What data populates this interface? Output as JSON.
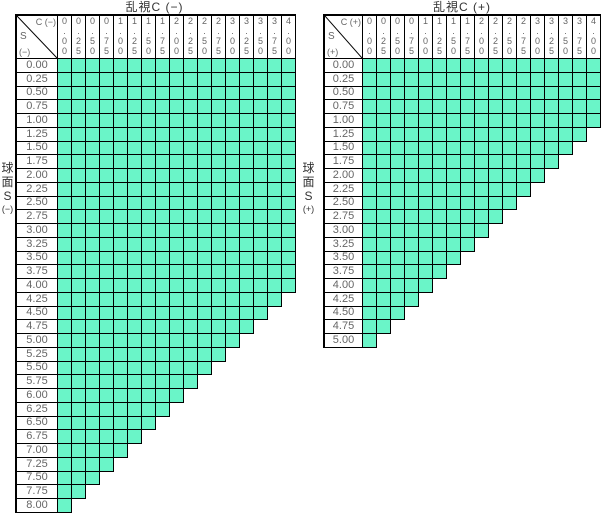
{
  "colors": {
    "cell_fill": "#6AF5C8",
    "grid_border": "#000000",
    "number_text": "#666666",
    "title_text": "#333333",
    "background": "#FFFFFF"
  },
  "chart_data": [
    {
      "type": "table",
      "title": "乱視C (−)",
      "corner": {
        "col_axis": "C (−)",
        "row_axis": "S",
        "row_axis_sign": "(−)"
      },
      "side_label": [
        "球",
        "面",
        "S",
        "(−)"
      ],
      "columns": [
        "0.00",
        "0.25",
        "0.50",
        "0.75",
        "1.00",
        "1.25",
        "1.50",
        "1.75",
        "2.00",
        "2.25",
        "2.50",
        "2.75",
        "3.00",
        "3.25",
        "3.50",
        "3.75",
        "4.00"
      ],
      "rows": [
        "0.00",
        "0.25",
        "0.50",
        "0.75",
        "1.00",
        "1.25",
        "1.50",
        "1.75",
        "2.00",
        "2.25",
        "2.50",
        "2.75",
        "3.00",
        "3.25",
        "3.50",
        "3.75",
        "4.00",
        "4.25",
        "4.50",
        "4.75",
        "5.00",
        "5.25",
        "5.50",
        "5.75",
        "6.00",
        "6.25",
        "6.50",
        "6.75",
        "7.00",
        "7.25",
        "7.50",
        "7.75",
        "8.00"
      ],
      "cells_filled_per_row": [
        17,
        17,
        17,
        17,
        17,
        17,
        17,
        17,
        17,
        17,
        17,
        17,
        17,
        17,
        17,
        17,
        17,
        16,
        15,
        14,
        13,
        12,
        11,
        10,
        9,
        8,
        7,
        6,
        5,
        4,
        3,
        2,
        1
      ]
    },
    {
      "type": "table",
      "title": "乱視C (+)",
      "corner": {
        "col_axis": "C (+)",
        "row_axis": "S",
        "row_axis_sign": "(+)"
      },
      "side_label": [
        "球",
        "面",
        "S",
        "(+)"
      ],
      "columns": [
        "0.00",
        "0.25",
        "0.50",
        "0.75",
        "1.00",
        "1.25",
        "1.50",
        "1.75",
        "2.00",
        "2.25",
        "2.50",
        "2.75",
        "3.00",
        "3.25",
        "3.50",
        "3.75",
        "4.00"
      ],
      "rows": [
        "0.00",
        "0.25",
        "0.50",
        "0.75",
        "1.00",
        "1.25",
        "1.50",
        "1.75",
        "2.00",
        "2.25",
        "2.50",
        "2.75",
        "3.00",
        "3.25",
        "3.50",
        "3.75",
        "4.00",
        "4.25",
        "4.50",
        "4.75",
        "5.00"
      ],
      "cells_filled_per_row": [
        17,
        17,
        17,
        17,
        17,
        16,
        15,
        14,
        13,
        12,
        11,
        10,
        9,
        8,
        7,
        6,
        5,
        4,
        3,
        2,
        1
      ]
    }
  ]
}
